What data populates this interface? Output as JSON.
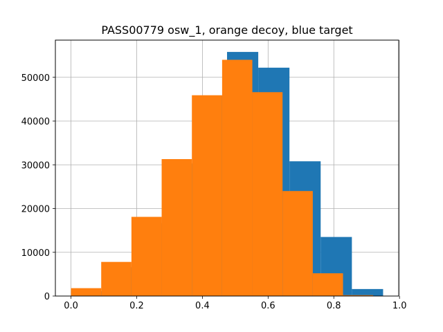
{
  "chart_data": {
    "type": "bar",
    "title": "PASS00779 osw_1, orange decoy, blue target",
    "xlabel": "",
    "ylabel": "",
    "xlim": [
      -0.0475,
      0.9975
    ],
    "ylim": [
      0,
      58500
    ],
    "grid": true,
    "x_ticks": [
      "0.0",
      "0.2",
      "0.4",
      "0.6",
      "0.8",
      "1.0"
    ],
    "y_ticks": [
      "0",
      "10000",
      "20000",
      "30000",
      "40000",
      "50000"
    ],
    "series": [
      {
        "color": "#1f77b4",
        "bins": [
          [
            0.0,
            0.095,
            1100
          ],
          [
            0.095,
            0.19,
            6600
          ],
          [
            0.19,
            0.285,
            16700
          ],
          [
            0.285,
            0.38,
            30300
          ],
          [
            0.38,
            0.475,
            45800
          ],
          [
            0.475,
            0.57,
            55800
          ],
          [
            0.57,
            0.665,
            52200
          ],
          [
            0.665,
            0.76,
            30800
          ],
          [
            0.76,
            0.855,
            13500
          ],
          [
            0.855,
            0.95,
            1600
          ]
        ]
      },
      {
        "color": "#ff7f0e",
        "bins": [
          [
            0.0,
            0.092,
            1800
          ],
          [
            0.092,
            0.184,
            7800
          ],
          [
            0.184,
            0.276,
            18100
          ],
          [
            0.276,
            0.368,
            31300
          ],
          [
            0.368,
            0.46,
            45900
          ],
          [
            0.46,
            0.552,
            54000
          ],
          [
            0.552,
            0.644,
            46600
          ],
          [
            0.644,
            0.736,
            24000
          ],
          [
            0.736,
            0.828,
            5200
          ],
          [
            0.828,
            0.92,
            200
          ]
        ]
      }
    ]
  }
}
